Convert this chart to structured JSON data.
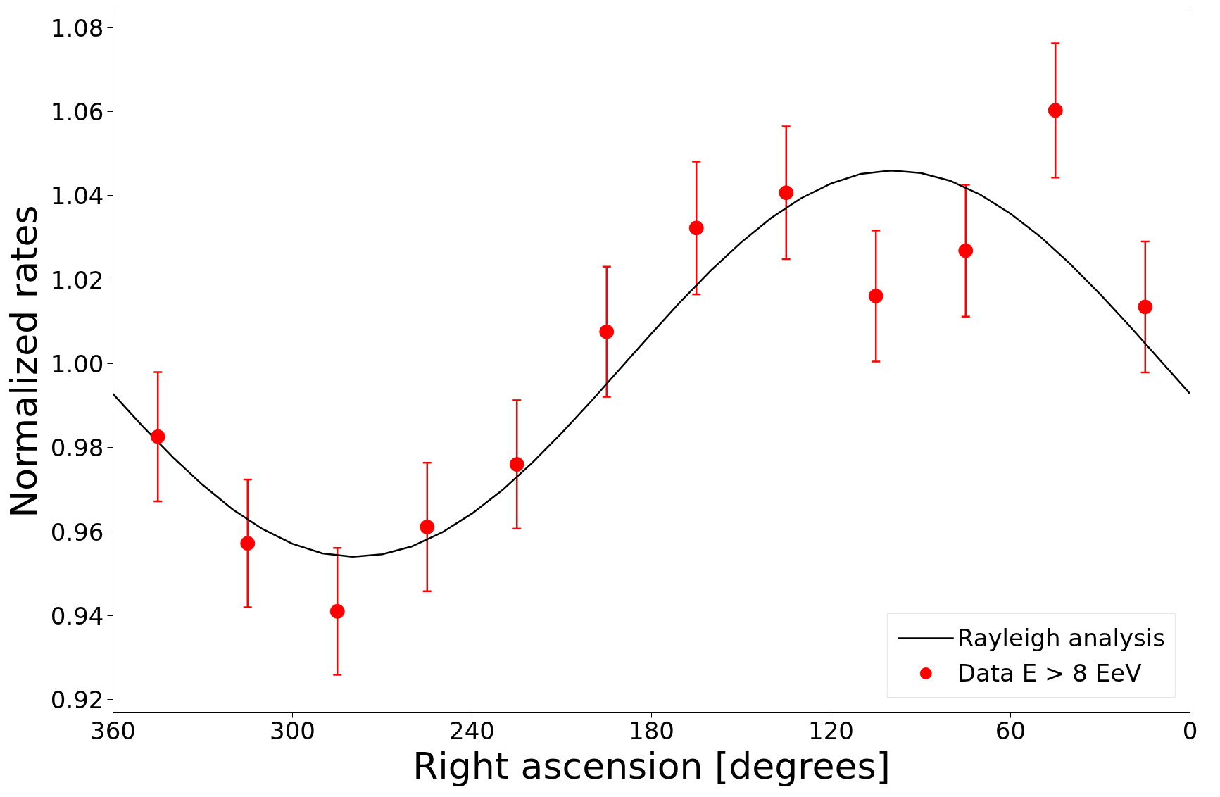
{
  "chart_data": {
    "type": "scatter",
    "xlabel": "Right ascension [degrees]",
    "ylabel": "Normalized rates",
    "xlim": [
      360,
      0
    ],
    "xticks": [
      360,
      300,
      240,
      180,
      120,
      60,
      0
    ],
    "ylim": [
      0.917,
      1.084
    ],
    "yticks": [
      {
        "value": 0.92,
        "label": "0.92"
      },
      {
        "value": 0.94,
        "label": "0.94"
      },
      {
        "value": 0.96,
        "label": "0.96"
      },
      {
        "value": 0.98,
        "label": "0.98"
      },
      {
        "value": 1.0,
        "label": "1.00"
      },
      {
        "value": 1.02,
        "label": "1.02"
      },
      {
        "value": 1.04,
        "label": "1.04"
      },
      {
        "value": 1.06,
        "label": "1.06"
      },
      {
        "value": 1.08,
        "label": "1.08"
      }
    ],
    "grid": false,
    "legend": "bottom right",
    "series": [
      {
        "name": "Rayleigh analysis",
        "type": "line",
        "color": "#000000",
        "line_style": "solid",
        "marker": "none",
        "x": [
          0,
          10,
          20,
          30,
          40,
          50,
          60,
          70,
          80,
          90,
          100,
          110,
          120,
          130,
          140,
          150,
          160,
          170,
          180,
          190,
          200,
          210,
          220,
          230,
          240,
          250,
          260,
          270,
          280,
          290,
          300,
          310,
          320,
          330,
          340,
          350,
          360
        ],
        "values": [
          0.9928,
          1.0008,
          1.0088,
          1.0165,
          1.0237,
          1.0302,
          1.0357,
          1.0402,
          1.0435,
          1.0454,
          1.046,
          1.0452,
          1.0429,
          1.0394,
          1.0347,
          1.0289,
          1.0223,
          1.015,
          1.0072,
          0.9992,
          0.9912,
          0.9835,
          0.9763,
          0.9698,
          0.9643,
          0.9598,
          0.9565,
          0.9546,
          0.954,
          0.9548,
          0.9571,
          0.9606,
          0.9653,
          0.9711,
          0.9777,
          0.985,
          0.9928
        ]
      },
      {
        "name": "Data E > 8 EeV",
        "color": "#ff0000",
        "marker": "circle",
        "x": [
          345,
          315,
          285,
          255,
          225,
          195,
          165,
          135,
          105,
          75,
          45,
          15
        ],
        "values": [
          0.9826,
          0.9572,
          0.941,
          0.9611,
          0.976,
          1.0076,
          1.0323,
          1.0407,
          1.0161,
          1.0269,
          1.0603,
          1.0135
        ],
        "errors": [
          0.0154,
          0.0152,
          0.0151,
          0.0153,
          0.0153,
          0.0155,
          0.0158,
          0.0158,
          0.0156,
          0.0157,
          0.016,
          0.0156
        ]
      }
    ]
  }
}
